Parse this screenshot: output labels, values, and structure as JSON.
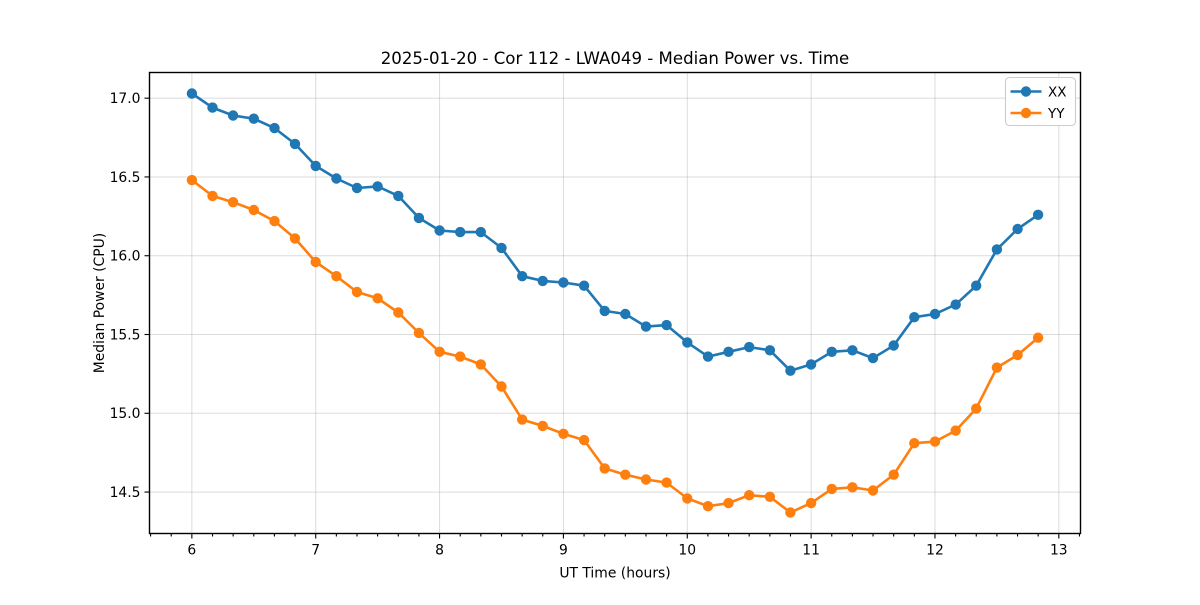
{
  "chart_data": {
    "type": "line",
    "title": "2025-01-20 - Cor 112 - LWA049 - Median Power vs. Time",
    "xlabel": "UT Time (hours)",
    "ylabel": "Median Power (CPU)",
    "xlim": [
      5.658,
      13.175
    ],
    "ylim": [
      14.237,
      17.163
    ],
    "xticks": [
      6,
      7,
      8,
      9,
      10,
      11,
      12,
      13
    ],
    "xtick_labels": [
      "6",
      "7",
      "8",
      "9",
      "10",
      "11",
      "12",
      "13"
    ],
    "yticks": [
      14.5,
      15.0,
      15.5,
      16.0,
      16.5,
      17.0
    ],
    "ytick_labels": [
      "14.5",
      "15.0",
      "15.5",
      "16.0",
      "16.5",
      "17.0"
    ],
    "x_minor_step": 0.16666667,
    "grid": true,
    "grid_color": "#b0b0b0",
    "legend_position": "upper right",
    "x": [
      6.0,
      6.167,
      6.333,
      6.5,
      6.667,
      6.833,
      7.0,
      7.167,
      7.333,
      7.5,
      7.667,
      7.833,
      8.0,
      8.167,
      8.333,
      8.5,
      8.667,
      8.833,
      9.0,
      9.167,
      9.333,
      9.5,
      9.667,
      9.833,
      10.0,
      10.167,
      10.333,
      10.5,
      10.667,
      10.833,
      11.0,
      11.167,
      11.333,
      11.5,
      11.667,
      11.833,
      12.0,
      12.167,
      12.333,
      12.5,
      12.667,
      12.833
    ],
    "series": [
      {
        "name": "XX",
        "color": "#1f77b4",
        "values": [
          17.03,
          16.94,
          16.89,
          16.87,
          16.81,
          16.71,
          16.57,
          16.49,
          16.43,
          16.44,
          16.38,
          16.24,
          16.16,
          16.15,
          16.15,
          16.05,
          15.87,
          15.84,
          15.83,
          15.81,
          15.65,
          15.63,
          15.55,
          15.56,
          15.45,
          15.36,
          15.39,
          15.42,
          15.4,
          15.27,
          15.31,
          15.39,
          15.4,
          15.35,
          15.43,
          15.61,
          15.63,
          15.69,
          15.81,
          16.04,
          16.17,
          16.26
        ]
      },
      {
        "name": "YY",
        "color": "#ff7f0e",
        "values": [
          16.48,
          16.38,
          16.34,
          16.29,
          16.22,
          16.11,
          15.96,
          15.87,
          15.77,
          15.73,
          15.64,
          15.51,
          15.39,
          15.36,
          15.31,
          15.17,
          14.96,
          14.92,
          14.87,
          14.83,
          14.65,
          14.61,
          14.58,
          14.56,
          14.46,
          14.41,
          14.43,
          14.48,
          14.47,
          14.37,
          14.43,
          14.52,
          14.53,
          14.51,
          14.61,
          14.81,
          14.82,
          14.89,
          15.03,
          15.29,
          15.37,
          15.48
        ]
      }
    ]
  }
}
